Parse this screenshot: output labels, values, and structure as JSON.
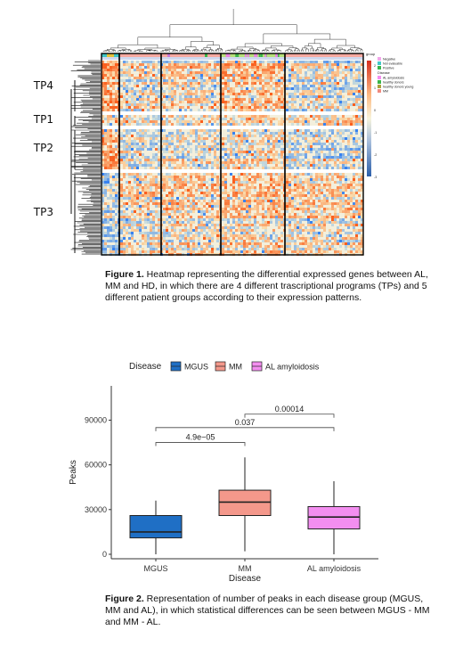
{
  "figure1": {
    "tp_labels": [
      "TP4",
      "TP1",
      "TP2",
      "TP3"
    ],
    "legend": {
      "group_title": "group",
      "group_items": [
        {
          "label": "Negative",
          "color": "#f2a6e9"
        },
        {
          "label": "Not evaluable",
          "color": "#44c8c8"
        },
        {
          "label": "Positive",
          "color": "#39b54a"
        }
      ],
      "disease_title": "Disease",
      "disease_items": [
        {
          "label": "AL amyloidosis",
          "color": "#f58ef0"
        },
        {
          "label": "healthy donors",
          "color": "#3ab54a"
        },
        {
          "label": "healthy donors young",
          "color": "#a8a23a"
        },
        {
          "label": "MM",
          "color": "#f08a7e"
        }
      ],
      "scale_ticks": [
        "2",
        "1",
        "0",
        "-1",
        "-2",
        "-3"
      ]
    },
    "caption_lead": "Figure 1.",
    "caption_text": " Heatmap representing the differential expressed genes between AL, MM and HD, in which there are 4 different trascriptional programs (TPs) and 5 different patient groups according to their expression patterns."
  },
  "figure2": {
    "caption_lead": "Figure 2.",
    "caption_text": " Representation of number of peaks in each disease group (MGUS, MM and AL), in which statistical differences can be seen between MGUS - MM and MM - AL."
  },
  "chart_data": {
    "type": "box",
    "legend_title": "Disease",
    "legend_position": "top",
    "categories": [
      "MGUS",
      "MM",
      "AL amyloidosis"
    ],
    "colors": [
      "#1f6fc5",
      "#f4988b",
      "#f38ef0"
    ],
    "series": [
      {
        "name": "MGUS",
        "whisker_low": 0,
        "q1": 11000,
        "median": 15000,
        "q3": 26000,
        "whisker_high": 36000
      },
      {
        "name": "MM",
        "whisker_low": 2000,
        "q1": 26000,
        "median": 35000,
        "q3": 43000,
        "whisker_high": 65000
      },
      {
        "name": "AL amyloidosis",
        "whisker_low": 0,
        "q1": 17000,
        "median": 25000,
        "q3": 32000,
        "whisker_high": 49000
      }
    ],
    "xlabel": "Disease",
    "ylabel": "Peaks",
    "yticks": [
      0,
      30000,
      60000,
      90000
    ],
    "ytick_labels": [
      "0",
      "30000",
      "60000",
      "90000"
    ],
    "ylim": [
      -3000,
      113000
    ],
    "annotations": [
      {
        "from": "MGUS",
        "to": "MM",
        "label": "4.9e−05",
        "y": 75000
      },
      {
        "from": "MGUS",
        "to": "AL amyloidosis",
        "label": "0.037",
        "y": 85000
      },
      {
        "from": "MM",
        "to": "AL amyloidosis",
        "label": "0.00014",
        "y": 94000
      }
    ]
  }
}
